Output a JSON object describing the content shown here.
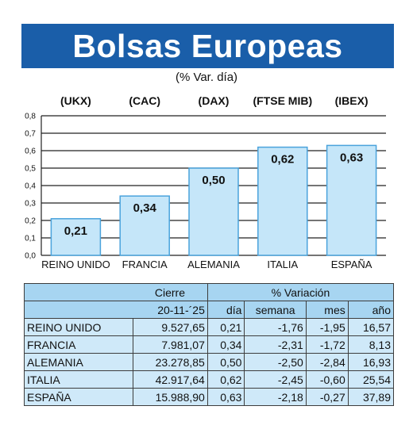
{
  "title": "Bolsas Europeas",
  "subtitle": "(% Var. día)",
  "chart_data": {
    "type": "bar",
    "codes": [
      "(UKX)",
      "(CAC)",
      "(DAX)",
      "(FTSE MIB)",
      "(IBEX)"
    ],
    "categories": [
      "REINO UNIDO",
      "FRANCIA",
      "ALEMANIA",
      "ITALIA",
      "ESPAÑA"
    ],
    "values": [
      0.21,
      0.34,
      0.5,
      0.62,
      0.63
    ],
    "value_labels": [
      "0,21",
      "0,34",
      "0,50",
      "0,62",
      "0,63"
    ],
    "yticks": [
      "0,0",
      "0,1",
      "0,2",
      "0,3",
      "0,4",
      "0,5",
      "0,6",
      "0,7",
      "0,8"
    ],
    "ylim": [
      0,
      0.8
    ],
    "grid": true,
    "bar_color": "#c5e6f9",
    "bar_border": "#4aa3dc"
  },
  "table": {
    "header_cierre": "Cierre",
    "header_variacion": "% Variación",
    "date": "20-11-´25",
    "col_dia": "día",
    "col_semana": "semana",
    "col_mes": "mes",
    "col_anio": "año",
    "rows": [
      {
        "name": "REINO UNIDO",
        "cierre": "9.527,65",
        "dia": "0,21",
        "semana": "-1,76",
        "mes": "-1,95",
        "anio": "16,57"
      },
      {
        "name": "FRANCIA",
        "cierre": "7.981,07",
        "dia": "0,34",
        "semana": "-2,31",
        "mes": "-1,72",
        "anio": "8,13"
      },
      {
        "name": "ALEMANIA",
        "cierre": "23.278,85",
        "dia": "0,50",
        "semana": "-2,50",
        "mes": "-2,84",
        "anio": "16,93"
      },
      {
        "name": "ITALIA",
        "cierre": "42.917,64",
        "dia": "0,62",
        "semana": "-2,45",
        "mes": "-0,60",
        "anio": "25,54"
      },
      {
        "name": "ESPAÑA",
        "cierre": "15.988,90",
        "dia": "0,63",
        "semana": "-2,18",
        "mes": "-0,27",
        "anio": "37,89"
      }
    ]
  }
}
